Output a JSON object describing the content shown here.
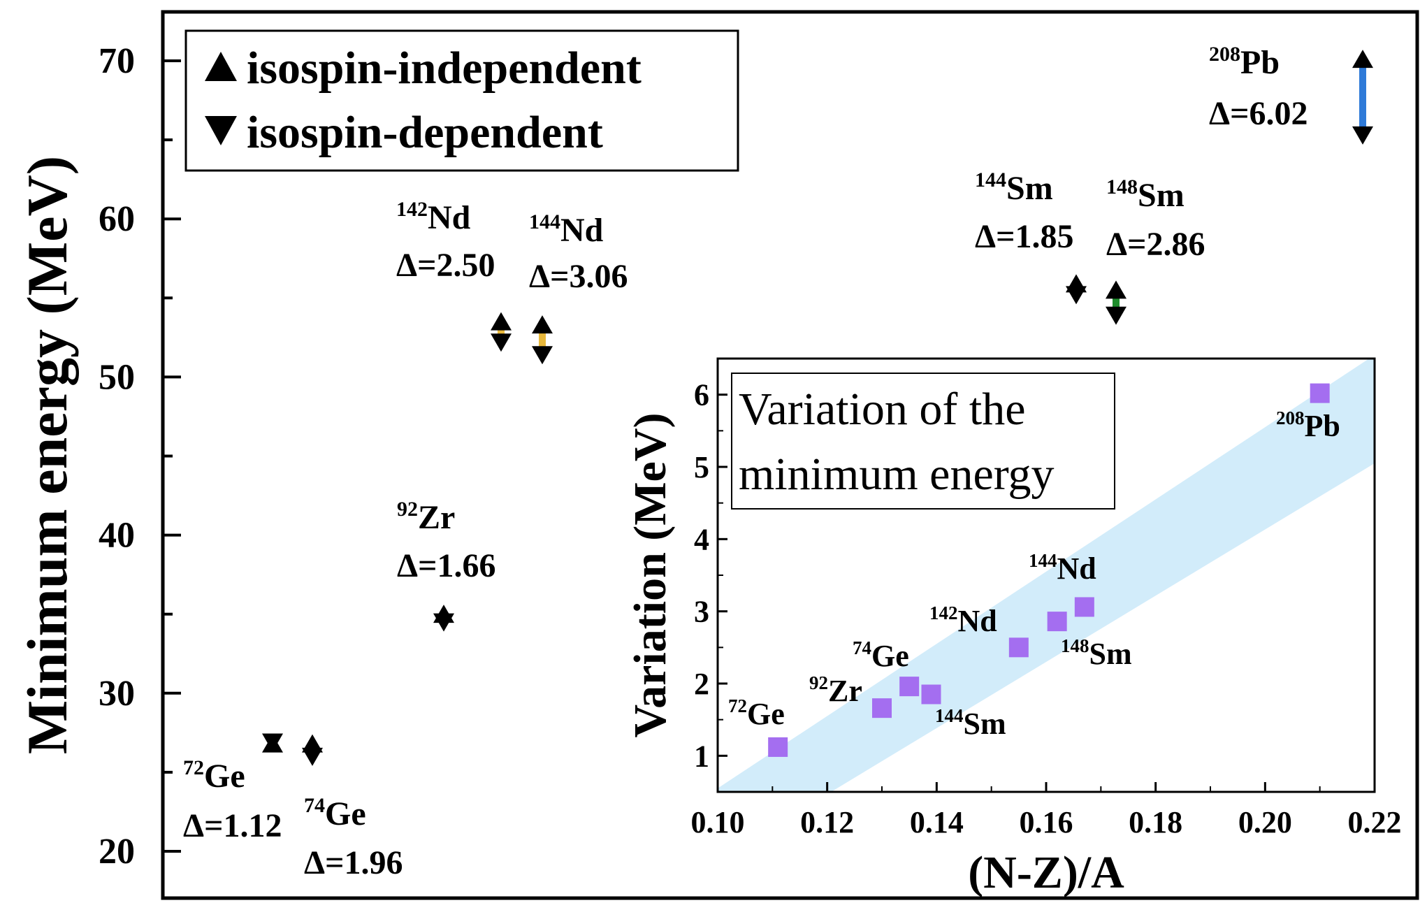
{
  "chart_data": [
    {
      "type": "scatter",
      "panel": "main",
      "ylabel": "Minimum energy (MeV)",
      "ylim": [
        16,
        73
      ],
      "yticks": [
        20,
        30,
        40,
        50,
        60,
        70
      ],
      "legend": {
        "placement": "top-left",
        "entries": [
          {
            "marker": "up-triangle",
            "label": "isospin-independent"
          },
          {
            "marker": "down-triangle",
            "label": "isospin-dependent"
          }
        ]
      },
      "series": [
        {
          "name": "isospin-independent",
          "values": [
            27.4,
            27.4,
            35.6,
            54.1,
            53.9,
            56.5,
            56.1,
            70.7
          ]
        },
        {
          "name": "isospin-dependent",
          "values": [
            26.3,
            25.4,
            33.9,
            51.6,
            50.8,
            54.6,
            53.3,
            64.7
          ]
        }
      ],
      "nuclei": [
        {
          "mass": "72",
          "element": "Ge",
          "delta_text": "Δ=1.12",
          "upper": 27.4,
          "lower": 26.3,
          "color": "#e8101c"
        },
        {
          "mass": "74",
          "element": "Ge",
          "delta_text": "Δ=1.96",
          "upper": 27.4,
          "lower": 25.4,
          "color": "#e8101c"
        },
        {
          "mass": "92",
          "element": "Zr",
          "delta_text": "Δ=1.66",
          "upper": 35.6,
          "lower": 33.9,
          "color": "#f28a1c"
        },
        {
          "mass": "142",
          "element": "Nd",
          "delta_text": "Δ=2.50",
          "upper": 54.1,
          "lower": 51.6,
          "color": "#e8b83c"
        },
        {
          "mass": "144",
          "element": "Nd",
          "delta_text": "Δ=3.06",
          "upper": 53.9,
          "lower": 50.8,
          "color": "#e8b83c"
        },
        {
          "mass": "144",
          "element": "Sm",
          "delta_text": "Δ=1.85",
          "upper": 56.5,
          "lower": 54.6,
          "color": "#1e8c2c"
        },
        {
          "mass": "148",
          "element": "Sm",
          "delta_text": "Δ=2.86",
          "upper": 56.1,
          "lower": 53.3,
          "color": "#1e8c2c"
        },
        {
          "mass": "208",
          "element": "Pb",
          "delta_text": "Δ=6.02",
          "upper": 70.7,
          "lower": 64.7,
          "color": "#2e7ad8"
        }
      ]
    },
    {
      "type": "scatter",
      "panel": "inset",
      "title": "Variation of the minimum energy",
      "xlabel": "(N-Z)/A",
      "ylabel": "Variation (MeV)",
      "xlim": [
        0.1,
        0.22
      ],
      "ylim": [
        0.5,
        6.5
      ],
      "xticks": [
        0.1,
        0.12,
        0.14,
        0.16,
        0.18,
        0.2,
        0.22
      ],
      "yticks": [
        1,
        2,
        3,
        4,
        5,
        6
      ],
      "marker_color": "#a46ef0",
      "band_color": "#d2ecfa",
      "band": {
        "lower": [
          [
            0.1,
            -0.45
          ],
          [
            0.22,
            5.05
          ]
        ],
        "upper": [
          [
            0.1,
            0.55
          ],
          [
            0.22,
            6.55
          ]
        ]
      },
      "points": [
        {
          "mass": "72",
          "element": "Ge",
          "x": 0.111,
          "y": 1.12
        },
        {
          "mass": "74",
          "element": "Ge",
          "x": 0.135,
          "y": 1.96
        },
        {
          "mass": "92",
          "element": "Zr",
          "x": 0.13,
          "y": 1.66
        },
        {
          "mass": "142",
          "element": "Nd",
          "x": 0.155,
          "y": 2.5
        },
        {
          "mass": "144",
          "element": "Nd",
          "x": 0.167,
          "y": 3.06
        },
        {
          "mass": "144",
          "element": "Sm",
          "x": 0.139,
          "y": 1.85
        },
        {
          "mass": "148",
          "element": "Sm",
          "x": 0.162,
          "y": 2.86
        },
        {
          "mass": "208",
          "element": "Pb",
          "x": 0.21,
          "y": 6.02
        }
      ]
    }
  ]
}
